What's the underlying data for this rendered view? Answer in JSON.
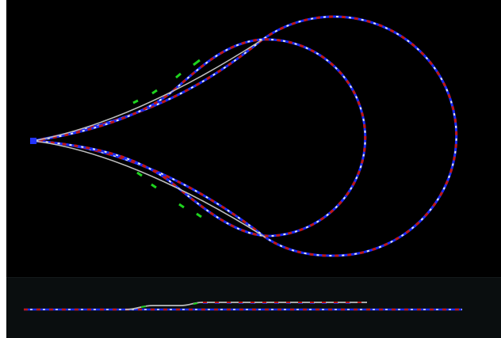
{
  "app": {
    "title": ""
  },
  "colors": {
    "background": "#000000",
    "profile_background": "#0a0e0f",
    "segment_blue": "#1a2cff",
    "segment_red": "#c01616",
    "segment_white": "#e8e8e8",
    "segment_green": "#1ed41e",
    "connector_grey": "#bdbdbd",
    "origin_node": "#2233ff"
  },
  "icons": {
    "origin_node": "square-node-icon"
  },
  "viewport": {
    "label": ""
  },
  "profile": {
    "label": ""
  }
}
